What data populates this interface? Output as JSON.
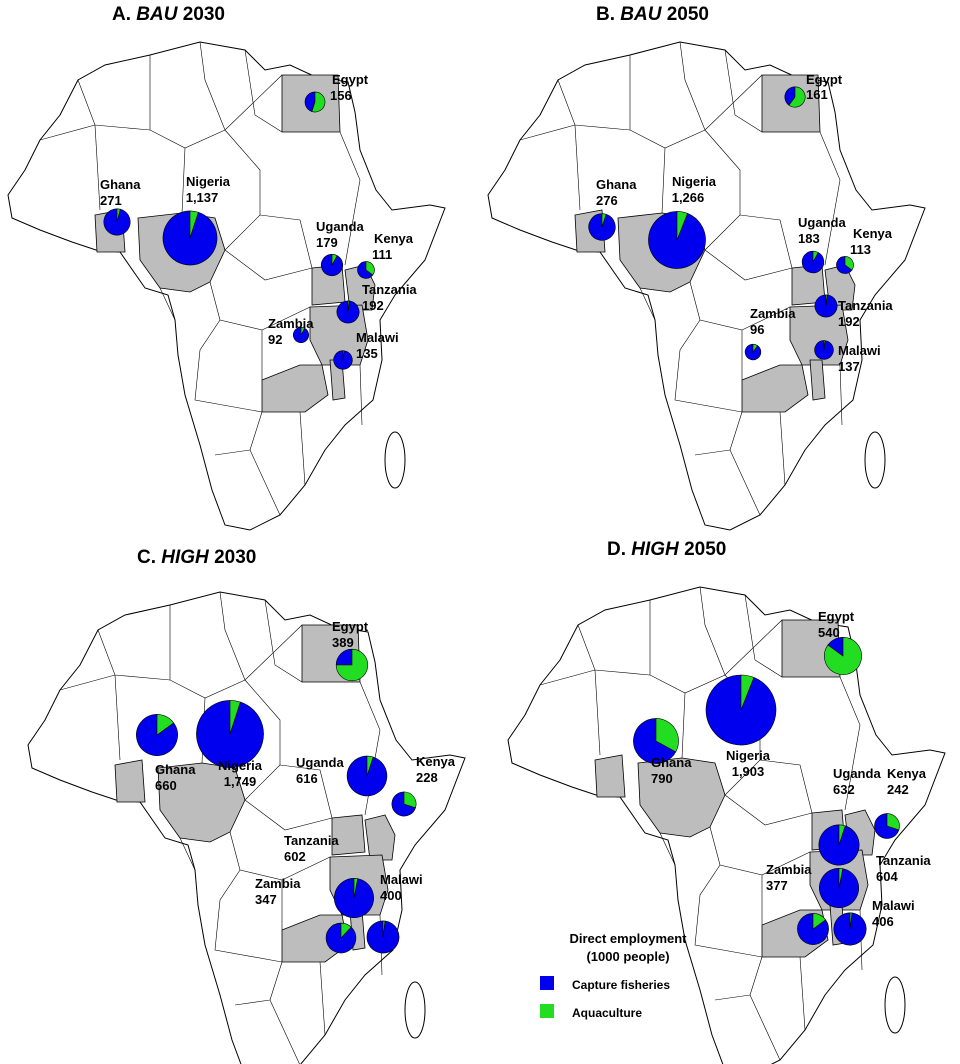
{
  "colors": {
    "capture": "#0000ee",
    "aquaculture": "#22dd22",
    "shade": "#bdbdbd"
  },
  "panels": [
    {
      "letter": "A.",
      "scenario": "BAU",
      "year": "2030",
      "countries": [
        {
          "key": "egypt",
          "name": "Egypt",
          "value": "156",
          "total": 156,
          "aqua_share": 0.55
        },
        {
          "key": "nigeria",
          "name": "Nigeria",
          "value": "1,137",
          "total": 1137,
          "aqua_share": 0.05
        },
        {
          "key": "ghana",
          "name": "Ghana",
          "value": "271",
          "total": 271,
          "aqua_share": 0.04
        },
        {
          "key": "uganda",
          "name": "Uganda",
          "value": "179",
          "total": 179,
          "aqua_share": 0.08
        },
        {
          "key": "kenya",
          "name": "Kenya",
          "value": "111",
          "total": 111,
          "aqua_share": 0.35
        },
        {
          "key": "tanzania",
          "name": "Tanzania",
          "value": "192",
          "total": 192,
          "aqua_share": 0.02
        },
        {
          "key": "zambia",
          "name": "Zambia",
          "value": "92",
          "total": 92,
          "aqua_share": 0.08
        },
        {
          "key": "malawi",
          "name": "Malawi",
          "value": "135",
          "total": 135,
          "aqua_share": 0.02
        }
      ]
    },
    {
      "letter": "B.",
      "scenario": "BAU",
      "year": "2050",
      "countries": [
        {
          "key": "egypt",
          "name": "Egypt",
          "value": "161",
          "total": 161,
          "aqua_share": 0.6
        },
        {
          "key": "nigeria",
          "name": "Nigeria",
          "value": "1,266",
          "total": 1266,
          "aqua_share": 0.06
        },
        {
          "key": "ghana",
          "name": "Ghana",
          "value": "276",
          "total": 276,
          "aqua_share": 0.05
        },
        {
          "key": "uganda",
          "name": "Uganda",
          "value": "183",
          "total": 183,
          "aqua_share": 0.08
        },
        {
          "key": "kenya",
          "name": "Kenya",
          "value": "113",
          "total": 113,
          "aqua_share": 0.35
        },
        {
          "key": "tanzania",
          "name": "Tanzania",
          "value": "192",
          "total": 192,
          "aqua_share": 0.02
        },
        {
          "key": "zambia",
          "name": "Zambia",
          "value": "96",
          "total": 96,
          "aqua_share": 0.1
        },
        {
          "key": "malawi",
          "name": "Malawi",
          "value": "137",
          "total": 137,
          "aqua_share": 0.02
        }
      ]
    },
    {
      "letter": "C.",
      "scenario": "HIGH",
      "year": "2030",
      "countries": [
        {
          "key": "egypt",
          "name": "Egypt",
          "value": "389",
          "total": 389,
          "aqua_share": 0.75
        },
        {
          "key": "nigeria",
          "name": "Nigeria",
          "value": "1,749",
          "total": 1749,
          "aqua_share": 0.05
        },
        {
          "key": "ghana",
          "name": "Ghana",
          "value": "660",
          "total": 660,
          "aqua_share": 0.15
        },
        {
          "key": "uganda",
          "name": "Uganda",
          "value": "616",
          "total": 616,
          "aqua_share": 0.05
        },
        {
          "key": "kenya",
          "name": "Kenya",
          "value": "228",
          "total": 228,
          "aqua_share": 0.3
        },
        {
          "key": "tanzania",
          "name": "Tanzania",
          "value": "602",
          "total": 602,
          "aqua_share": 0.03
        },
        {
          "key": "zambia",
          "name": "Zambia",
          "value": "347",
          "total": 347,
          "aqua_share": 0.12
        },
        {
          "key": "malawi",
          "name": "Malawi",
          "value": "400",
          "total": 400,
          "aqua_share": 0.02
        }
      ]
    },
    {
      "letter": "D.",
      "scenario": "HIGH",
      "year": "2050",
      "countries": [
        {
          "key": "egypt",
          "name": "Egypt",
          "value": "540",
          "total": 540,
          "aqua_share": 0.85
        },
        {
          "key": "nigeria",
          "name": "Nigeria",
          "value": "1,903",
          "total": 1903,
          "aqua_share": 0.06
        },
        {
          "key": "ghana",
          "name": "Ghana",
          "value": "790",
          "total": 790,
          "aqua_share": 0.33
        },
        {
          "key": "uganda",
          "name": "Uganda",
          "value": "632",
          "total": 632,
          "aqua_share": 0.05
        },
        {
          "key": "kenya",
          "name": "Kenya",
          "value": "242",
          "total": 242,
          "aqua_share": 0.3
        },
        {
          "key": "tanzania",
          "name": "Tanzania",
          "value": "604",
          "total": 604,
          "aqua_share": 0.03
        },
        {
          "key": "zambia",
          "name": "Zambia",
          "value": "377",
          "total": 377,
          "aqua_share": 0.15
        },
        {
          "key": "malawi",
          "name": "Malawi",
          "value": "406",
          "total": 406,
          "aqua_share": 0.02
        }
      ]
    }
  ],
  "legend": {
    "title_line1": "Direct employment",
    "title_line2": "(1000 people)",
    "items": [
      {
        "label": "Capture fisheries",
        "color": "#0000ee"
      },
      {
        "label": "Aquaculture",
        "color": "#22dd22"
      }
    ]
  }
}
